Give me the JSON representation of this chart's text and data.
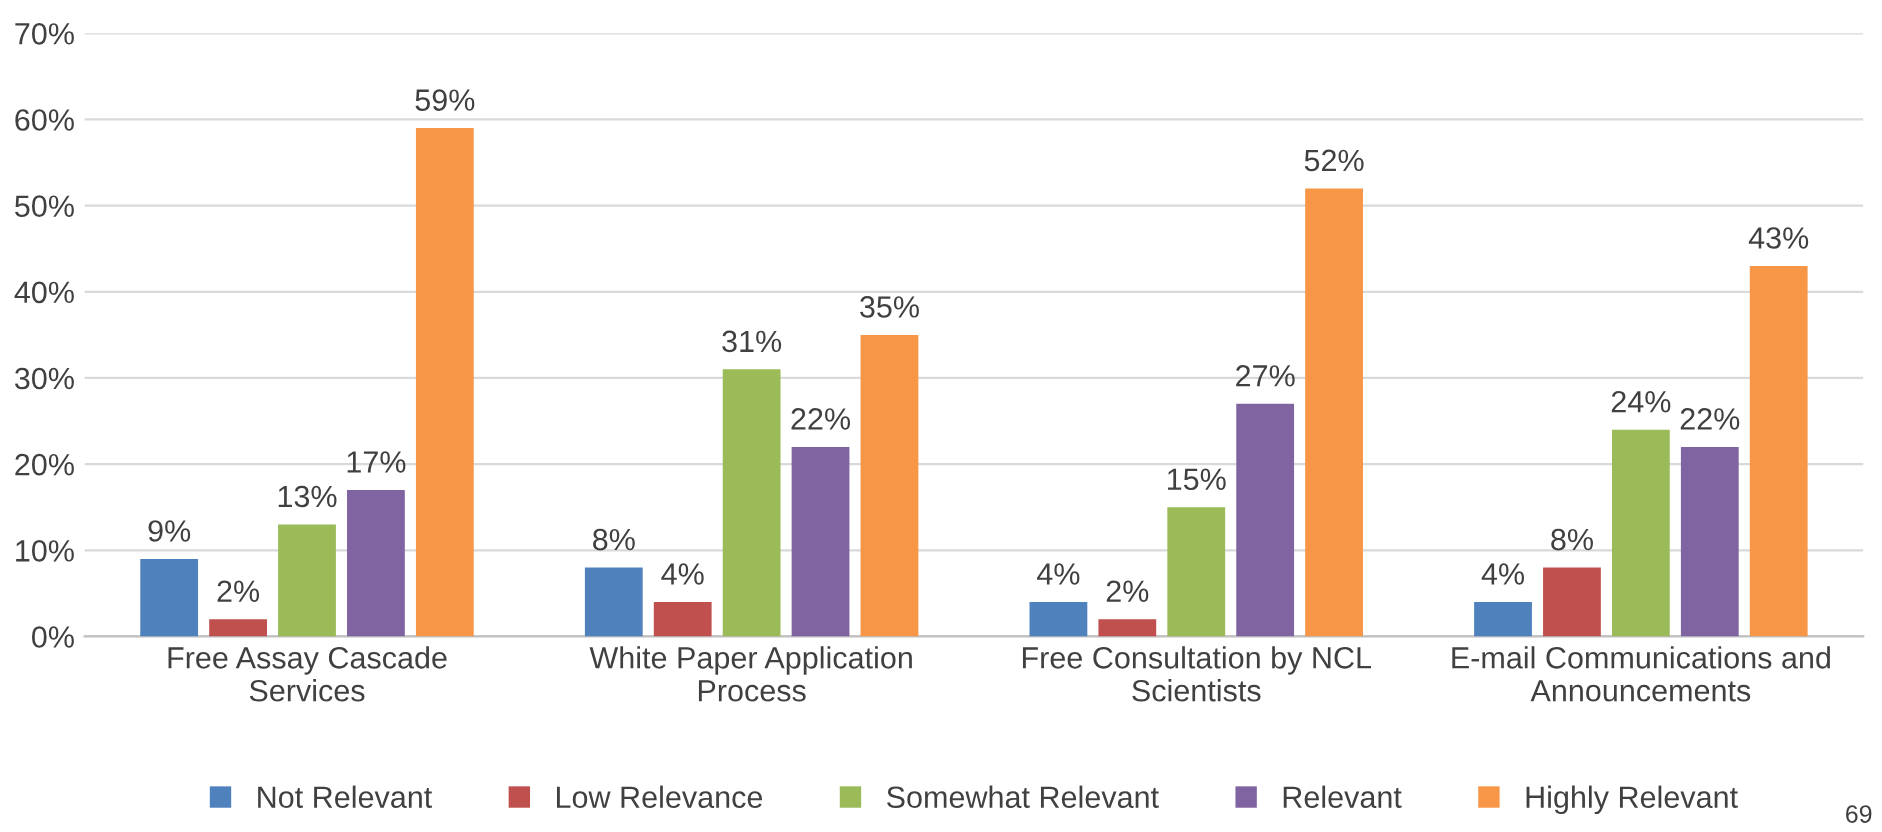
{
  "chart_data": {
    "type": "bar",
    "categories": [
      "Free Assay Cascade\nServices",
      "White Paper Application\nProcess",
      "Free Consultation by NCL\nScientists",
      "E-mail Communications and\nAnnouncements"
    ],
    "series": [
      {
        "name": "Not Relevant",
        "color": "#4f81bd",
        "values": [
          9,
          8,
          4,
          4
        ]
      },
      {
        "name": "Low Relevance",
        "color": "#c0504d",
        "values": [
          2,
          4,
          2,
          8
        ]
      },
      {
        "name": "Somewhat Relevant",
        "color": "#9bbb59",
        "values": [
          13,
          31,
          15,
          24
        ]
      },
      {
        "name": "Relevant",
        "color": "#8064a2",
        "values": [
          17,
          22,
          27,
          22
        ]
      },
      {
        "name": "Highly Relevant",
        "color": "#f79646",
        "values": [
          59,
          35,
          52,
          43
        ]
      }
    ],
    "ylim": [
      0,
      70
    ],
    "yticks": [
      {
        "value": 0,
        "label": "0%"
      },
      {
        "value": 10,
        "label": "10%"
      },
      {
        "value": 20,
        "label": "20%"
      },
      {
        "value": 30,
        "label": "30%"
      },
      {
        "value": 40,
        "label": "40%"
      },
      {
        "value": 50,
        "label": "50%"
      },
      {
        "value": 60,
        "label": "60%"
      },
      {
        "value": 70,
        "label": "70%"
      }
    ],
    "value_labels": [
      [
        "9%",
        "8%",
        "4%",
        "4%"
      ],
      [
        "2%",
        "4%",
        "2%",
        "8%"
      ],
      [
        "13%",
        "31%",
        "15%",
        "24%"
      ],
      [
        "17%",
        "22%",
        "27%",
        "22%"
      ],
      [
        "59%",
        "35%",
        "52%",
        "43%"
      ]
    ],
    "grid": "y",
    "legend": "bottom",
    "annotations": [
      "69"
    ]
  }
}
